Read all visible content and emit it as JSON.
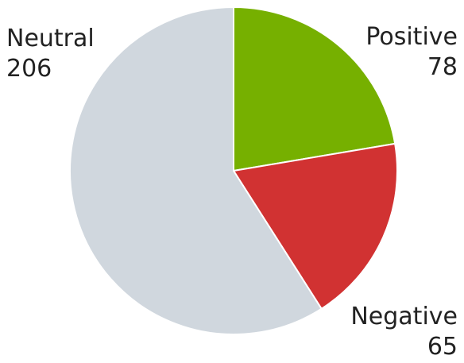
{
  "chart_data": {
    "type": "pie",
    "title": "",
    "slices": [
      {
        "label": "Positive",
        "value": 78,
        "color": "#76b000"
      },
      {
        "label": "Negative",
        "value": 65,
        "color": "#d13232"
      },
      {
        "label": "Neutral",
        "value": 206,
        "color": "#d0d7de"
      }
    ],
    "start_angle_deg": 0,
    "direction": "clockwise",
    "legend": "none"
  }
}
